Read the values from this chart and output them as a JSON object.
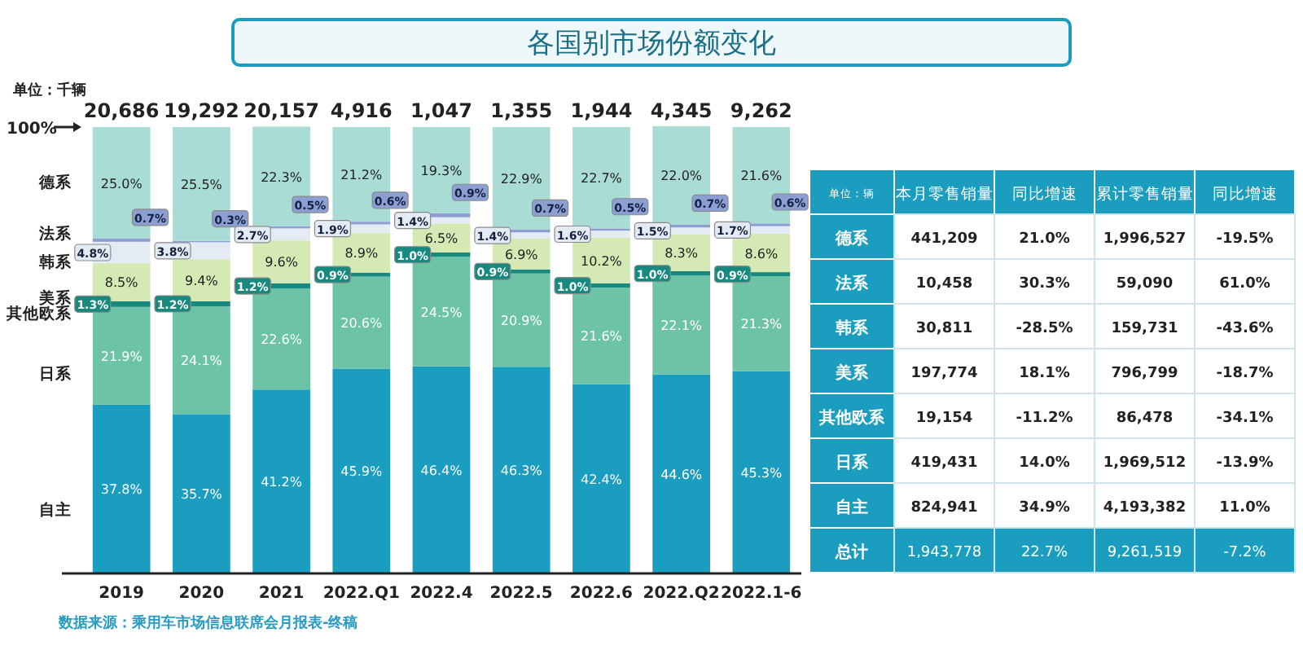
{
  "chart_data": [
    {
      "type": "bar",
      "title": "各国别市场份额变化",
      "stacked": true,
      "legend": "left",
      "tick_labels": "x",
      "categories": [
        "2019",
        "2020",
        "2021",
        "2022.Q1",
        "2022.4",
        "2022.5",
        "2022.6",
        "2022.Q2",
        "2022.1-6"
      ],
      "series": [
        {
          "name": "自主",
          "color": "#1a9dbf",
          "values": [
            37.8,
            35.7,
            41.2,
            45.9,
            46.4,
            46.3,
            42.4,
            44.6,
            45.3
          ],
          "value_labels": [
            "37.8%",
            "35.7%",
            "41.2%",
            "45.9%",
            "46.4%",
            "46.3%",
            "42.4%",
            "44.6%",
            "45.3%"
          ]
        },
        {
          "name": "日系",
          "color": "#6cc3a6",
          "values": [
            21.9,
            24.1,
            22.6,
            20.6,
            24.5,
            20.9,
            21.6,
            22.1,
            21.3
          ],
          "value_labels": [
            "21.9%",
            "24.1%",
            "22.6%",
            "20.6%",
            "24.5%",
            "20.9%",
            "21.6%",
            "22.1%",
            "21.3%"
          ]
        },
        {
          "name": "其他欧系",
          "color": "#17897f",
          "values": [
            1.3,
            1.2,
            1.2,
            0.9,
            1.0,
            0.9,
            1.0,
            1.0,
            0.9
          ],
          "value_labels": [
            "1.3%",
            "1.2%",
            "1.2%",
            "0.9%",
            "1.0%",
            "0.9%",
            "1.0%",
            "1.0%",
            "0.9%"
          ]
        },
        {
          "name": "美系",
          "color": "#d5e9b4",
          "values": [
            8.5,
            9.4,
            9.6,
            8.9,
            6.5,
            6.9,
            10.2,
            8.3,
            8.6
          ],
          "value_labels": [
            "8.5%",
            "9.4%",
            "9.6%",
            "8.9%",
            "6.5%",
            "6.9%",
            "10.2%",
            "8.3%",
            "8.6%"
          ]
        },
        {
          "name": "韩系",
          "color": "#e4ebf4",
          "values": [
            4.8,
            3.8,
            2.7,
            1.9,
            1.4,
            1.4,
            1.6,
            1.5,
            1.7
          ],
          "value_labels": [
            "4.8%",
            "3.8%",
            "2.7%",
            "1.9%",
            "1.4%",
            "1.4%",
            "1.6%",
            "1.5%",
            "1.7%"
          ]
        },
        {
          "name": "法系",
          "color": "#8c9fd2",
          "values": [
            0.7,
            0.3,
            0.5,
            0.6,
            0.9,
            0.7,
            0.5,
            0.7,
            0.6
          ],
          "value_labels": [
            "0.7%",
            "0.3%",
            "0.5%",
            "0.6%",
            "0.9%",
            "0.7%",
            "0.5%",
            "0.7%",
            "0.6%"
          ]
        },
        {
          "name": "德系",
          "color": "#a9dcd4",
          "values": [
            25.0,
            25.5,
            22.3,
            21.2,
            19.3,
            22.9,
            22.7,
            22.0,
            21.6
          ],
          "value_labels": [
            "25.0%",
            "25.5%",
            "22.3%",
            "21.2%",
            "19.3%",
            "22.9%",
            "22.7%",
            "22.0%",
            "21.6%"
          ]
        }
      ],
      "annotations": [
        "单位：千辆",
        "100%",
        "数据来源：乘用车市场信息联席会月报表-终稿",
        {
          "text": "20,686",
          "x": "2019",
          "y": 100
        },
        {
          "text": "19,292",
          "x": "2020",
          "y": 100
        },
        {
          "text": "20,157",
          "x": "2021",
          "y": 100
        },
        {
          "text": "4,916",
          "x": "2022.Q1",
          "y": 100
        },
        {
          "text": "1,047",
          "x": "2022.4",
          "y": 100
        },
        {
          "text": "1,355",
          "x": "2022.5",
          "y": 100
        },
        {
          "text": "1,944",
          "x": "2022.6",
          "y": 100
        },
        {
          "text": "4,345",
          "x": "2022.Q2",
          "y": 100
        },
        {
          "text": "9,262",
          "x": "2022.1-6",
          "y": 100
        }
      ]
    },
    {
      "type": "other",
      "categories": [
        "德系",
        "法系",
        "韩系",
        "美系",
        "其他欧系",
        "日系",
        "自主",
        "总计"
      ],
      "annotations": [
        "单位：辆",
        "本月零售销量",
        "同比增速",
        "累计零售销量",
        "同比增速",
        "441,209",
        "21.0%",
        "1,996,527",
        "-19.5%",
        "10,458",
        "30.3%",
        "59,090",
        "61.0%",
        "30,811",
        "-28.5%",
        "159,731",
        "-43.6%",
        "197,774",
        "18.1%",
        "796,799",
        "-18.7%",
        "19,154",
        "-11.2%",
        "86,478",
        "-34.1%",
        "419,431",
        "14.0%",
        "1,969,512",
        "-13.9%",
        "824,941",
        "34.9%",
        "4,193,382",
        "11.0%",
        "1,943,778",
        "22.7%",
        "9,261,519",
        "-7.2%"
      ]
    }
  ]
}
